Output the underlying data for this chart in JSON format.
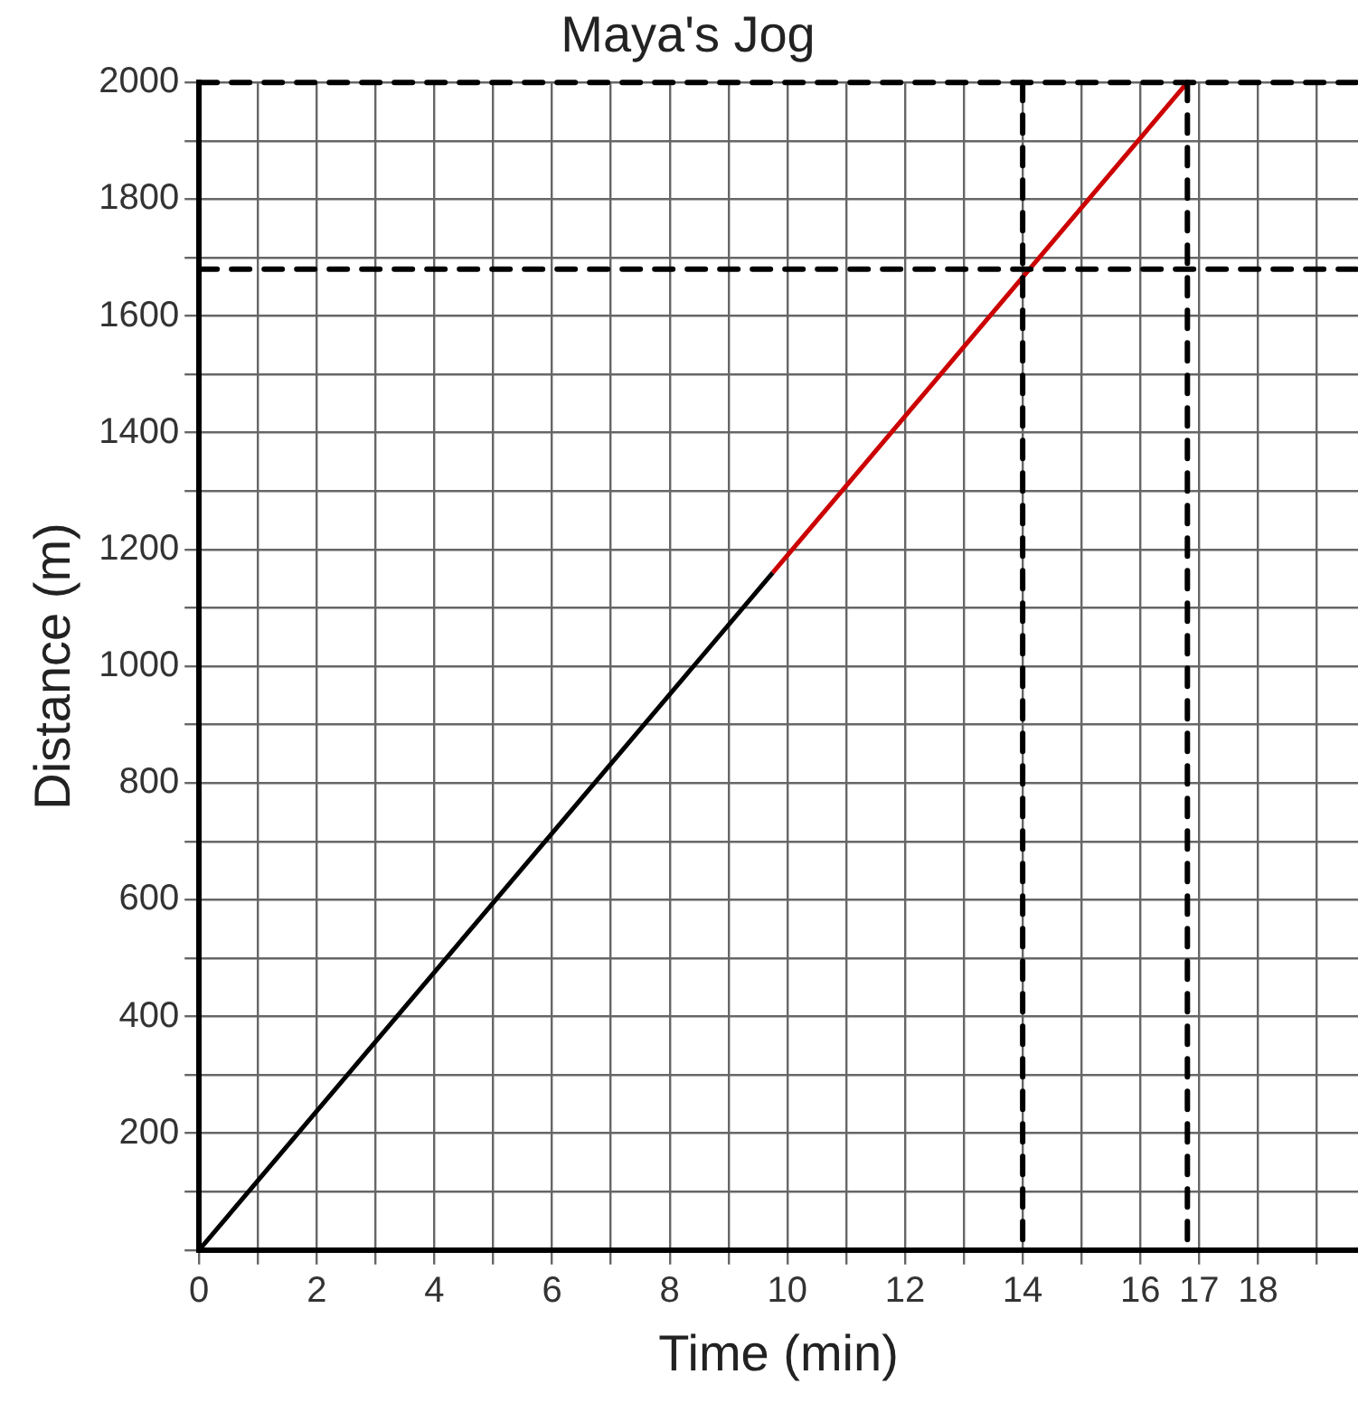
{
  "chart_data": {
    "type": "line",
    "title": "Maya's Jog",
    "xlabel": "Time (min)",
    "ylabel": "Distance (m)",
    "xlim": [
      0,
      19.7
    ],
    "ylim": [
      0,
      2000
    ],
    "xticks": [
      0,
      {
        "value": 1,
        "label": null
      },
      2,
      {
        "value": 3,
        "label": null
      },
      4,
      {
        "value": 5,
        "label": null
      },
      6,
      {
        "value": 7,
        "label": null
      },
      8,
      {
        "value": 9,
        "label": null
      },
      10,
      {
        "value": 11,
        "label": null
      },
      12,
      {
        "value": 13,
        "label": null
      },
      14,
      {
        "value": 15,
        "label": null
      },
      16,
      17,
      18,
      {
        "value": 19,
        "label": null
      }
    ],
    "yticks": [
      {
        "value": 0,
        "label": null
      },
      {
        "value": 100,
        "label": null
      },
      200,
      {
        "value": 300,
        "label": null
      },
      400,
      {
        "value": 500,
        "label": null
      },
      600,
      {
        "value": 700,
        "label": null
      },
      800,
      {
        "value": 900,
        "label": null
      },
      1000,
      {
        "value": 1100,
        "label": null
      },
      1200,
      {
        "value": 1300,
        "label": null
      },
      1400,
      {
        "value": 1500,
        "label": null
      },
      1600,
      {
        "value": 1700,
        "label": null
      },
      1800,
      {
        "value": 1900,
        "label": null
      },
      2000
    ],
    "grid": true,
    "marker": "none",
    "line_style": "solid",
    "series": [
      {
        "color": "#000000",
        "x": [
          0,
          9.75
        ],
        "values": [
          0,
          1160
        ]
      },
      {
        "color": "#cc0000",
        "x": [
          9.75,
          16.8
        ],
        "values": [
          1160,
          2000
        ]
      }
    ],
    "ref_lines": [
      {
        "axis": "y",
        "value": 1680,
        "color": "#000000",
        "line_style": "dashed"
      },
      {
        "axis": "x",
        "value": 14,
        "color": "#000000",
        "line_style": "dashed"
      },
      {
        "axis": "x",
        "value": 16.8,
        "color": "#000000",
        "line_style": "dashed"
      },
      {
        "axis": "y",
        "value": 2000,
        "color": "#000000",
        "line_style": "dashed"
      }
    ]
  }
}
